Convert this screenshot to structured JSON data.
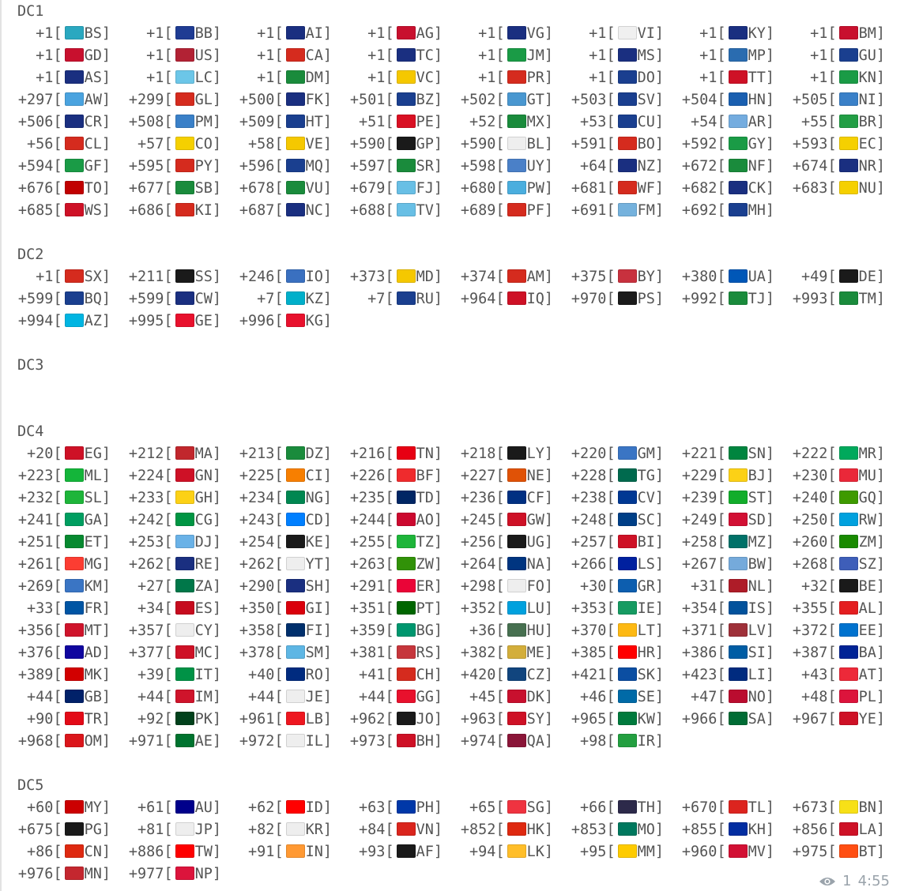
{
  "sections": [
    {
      "label": "DC1",
      "blank_after": 1,
      "rows": [
        [
          [
            "+1",
            "BS"
          ],
          [
            "+1",
            "BB"
          ],
          [
            "+1",
            "AI"
          ],
          [
            "+1",
            "AG"
          ],
          [
            "+1",
            "VG"
          ],
          [
            "+1",
            "VI"
          ],
          [
            "+1",
            "KY"
          ],
          [
            "+1",
            "BM"
          ]
        ],
        [
          [
            "+1",
            "GD"
          ],
          [
            "+1",
            "US"
          ],
          [
            "+1",
            "CA"
          ],
          [
            "+1",
            "TC"
          ],
          [
            "+1",
            "JM"
          ],
          [
            "+1",
            "MS"
          ],
          [
            "+1",
            "MP"
          ],
          [
            "+1",
            "GU"
          ]
        ],
        [
          [
            "+1",
            "AS"
          ],
          [
            "+1",
            "LC"
          ],
          [
            "+1",
            "DM"
          ],
          [
            "+1",
            "VC"
          ],
          [
            "+1",
            "PR"
          ],
          [
            "+1",
            "DO"
          ],
          [
            "+1",
            "TT"
          ],
          [
            "+1",
            "KN"
          ]
        ],
        [
          [
            "+297",
            "AW"
          ],
          [
            "+299",
            "GL"
          ],
          [
            "+500",
            "FK"
          ],
          [
            "+501",
            "BZ"
          ],
          [
            "+502",
            "GT"
          ],
          [
            "+503",
            "SV"
          ],
          [
            "+504",
            "HN"
          ],
          [
            "+505",
            "NI"
          ]
        ],
        [
          [
            "+506",
            "CR"
          ],
          [
            "+508",
            "PM"
          ],
          [
            "+509",
            "HT"
          ],
          [
            "+51",
            "PE"
          ],
          [
            "+52",
            "MX"
          ],
          [
            "+53",
            "CU"
          ],
          [
            "+54",
            "AR"
          ],
          [
            "+55",
            "BR"
          ]
        ],
        [
          [
            "+56",
            "CL"
          ],
          [
            "+57",
            "CO"
          ],
          [
            "+58",
            "VE"
          ],
          [
            "+590",
            "GP"
          ],
          [
            "+590",
            "BL"
          ],
          [
            "+591",
            "BO"
          ],
          [
            "+592",
            "GY"
          ],
          [
            "+593",
            "EC"
          ]
        ],
        [
          [
            "+594",
            "GF"
          ],
          [
            "+595",
            "PY"
          ],
          [
            "+596",
            "MQ"
          ],
          [
            "+597",
            "SR"
          ],
          [
            "+598",
            "UY"
          ],
          [
            "+64",
            "NZ"
          ],
          [
            "+672",
            "NF"
          ],
          [
            "+674",
            "NR"
          ]
        ],
        [
          [
            "+676",
            "TO"
          ],
          [
            "+677",
            "SB"
          ],
          [
            "+678",
            "VU"
          ],
          [
            "+679",
            "FJ"
          ],
          [
            "+680",
            "PW"
          ],
          [
            "+681",
            "WF"
          ],
          [
            "+682",
            "CK"
          ],
          [
            "+683",
            "NU"
          ]
        ],
        [
          [
            "+685",
            "WS"
          ],
          [
            "+686",
            "KI"
          ],
          [
            "+687",
            "NC"
          ],
          [
            "+688",
            "TV"
          ],
          [
            "+689",
            "PF"
          ],
          [
            "+691",
            "FM"
          ],
          [
            "+692",
            "MH"
          ]
        ]
      ]
    },
    {
      "label": "DC2",
      "blank_after": 1,
      "rows": [
        [
          [
            "+1",
            "SX"
          ],
          [
            "+211",
            "SS"
          ],
          [
            "+246",
            "IO"
          ],
          [
            "+373",
            "MD"
          ],
          [
            "+374",
            "AM"
          ],
          [
            "+375",
            "BY"
          ],
          [
            "+380",
            "UA"
          ],
          [
            "+49",
            "DE"
          ]
        ],
        [
          [
            "+599",
            "BQ"
          ],
          [
            "+599",
            "CW"
          ],
          [
            "+7",
            "KZ"
          ],
          [
            "+7",
            "RU"
          ],
          [
            "+964",
            "IQ"
          ],
          [
            "+970",
            "PS"
          ],
          [
            "+992",
            "TJ"
          ],
          [
            "+993",
            "TM"
          ]
        ],
        [
          [
            "+994",
            "AZ"
          ],
          [
            "+995",
            "GE"
          ],
          [
            "+996",
            "KG"
          ]
        ]
      ]
    },
    {
      "label": "DC3",
      "blank_after": 2,
      "rows": []
    },
    {
      "label": "DC4",
      "blank_after": 1,
      "rows": [
        [
          [
            "+20",
            "EG"
          ],
          [
            "+212",
            "MA"
          ],
          [
            "+213",
            "DZ"
          ],
          [
            "+216",
            "TN"
          ],
          [
            "+218",
            "LY"
          ],
          [
            "+220",
            "GM"
          ],
          [
            "+221",
            "SN"
          ],
          [
            "+222",
            "MR"
          ]
        ],
        [
          [
            "+223",
            "ML"
          ],
          [
            "+224",
            "GN"
          ],
          [
            "+225",
            "CI"
          ],
          [
            "+226",
            "BF"
          ],
          [
            "+227",
            "NE"
          ],
          [
            "+228",
            "TG"
          ],
          [
            "+229",
            "BJ"
          ],
          [
            "+230",
            "MU"
          ]
        ],
        [
          [
            "+232",
            "SL"
          ],
          [
            "+233",
            "GH"
          ],
          [
            "+234",
            "NG"
          ],
          [
            "+235",
            "TD"
          ],
          [
            "+236",
            "CF"
          ],
          [
            "+238",
            "CV"
          ],
          [
            "+239",
            "ST"
          ],
          [
            "+240",
            "GQ"
          ]
        ],
        [
          [
            "+241",
            "GA"
          ],
          [
            "+242",
            "CG"
          ],
          [
            "+243",
            "CD"
          ],
          [
            "+244",
            "AO"
          ],
          [
            "+245",
            "GW"
          ],
          [
            "+248",
            "SC"
          ],
          [
            "+249",
            "SD"
          ],
          [
            "+250",
            "RW"
          ]
        ],
        [
          [
            "+251",
            "ET"
          ],
          [
            "+253",
            "DJ"
          ],
          [
            "+254",
            "KE"
          ],
          [
            "+255",
            "TZ"
          ],
          [
            "+256",
            "UG"
          ],
          [
            "+257",
            "BI"
          ],
          [
            "+258",
            "MZ"
          ],
          [
            "+260",
            "ZM"
          ]
        ],
        [
          [
            "+261",
            "MG"
          ],
          [
            "+262",
            "RE"
          ],
          [
            "+262",
            "YT"
          ],
          [
            "+263",
            "ZW"
          ],
          [
            "+264",
            "NA"
          ],
          [
            "+266",
            "LS"
          ],
          [
            "+267",
            "BW"
          ],
          [
            "+268",
            "SZ"
          ]
        ],
        [
          [
            "+269",
            "KM"
          ],
          [
            "+27",
            "ZA"
          ],
          [
            "+290",
            "SH"
          ],
          [
            "+291",
            "ER"
          ],
          [
            "+298",
            "FO"
          ],
          [
            "+30",
            "GR"
          ],
          [
            "+31",
            "NL"
          ],
          [
            "+32",
            "BE"
          ]
        ],
        [
          [
            "+33",
            "FR"
          ],
          [
            "+34",
            "ES"
          ],
          [
            "+350",
            "GI"
          ],
          [
            "+351",
            "PT"
          ],
          [
            "+352",
            "LU"
          ],
          [
            "+353",
            "IE"
          ],
          [
            "+354",
            "IS"
          ],
          [
            "+355",
            "AL"
          ]
        ],
        [
          [
            "+356",
            "MT"
          ],
          [
            "+357",
            "CY"
          ],
          [
            "+358",
            "FI"
          ],
          [
            "+359",
            "BG"
          ],
          [
            "+36",
            "HU"
          ],
          [
            "+370",
            "LT"
          ],
          [
            "+371",
            "LV"
          ],
          [
            "+372",
            "EE"
          ]
        ],
        [
          [
            "+376",
            "AD"
          ],
          [
            "+377",
            "MC"
          ],
          [
            "+378",
            "SM"
          ],
          [
            "+381",
            "RS"
          ],
          [
            "+382",
            "ME"
          ],
          [
            "+385",
            "HR"
          ],
          [
            "+386",
            "SI"
          ],
          [
            "+387",
            "BA"
          ]
        ],
        [
          [
            "+389",
            "MK"
          ],
          [
            "+39",
            "IT"
          ],
          [
            "+40",
            "RO"
          ],
          [
            "+41",
            "CH"
          ],
          [
            "+420",
            "CZ"
          ],
          [
            "+421",
            "SK"
          ],
          [
            "+423",
            "LI"
          ],
          [
            "+43",
            "AT"
          ]
        ],
        [
          [
            "+44",
            "GB"
          ],
          [
            "+44",
            "IM"
          ],
          [
            "+44",
            "JE"
          ],
          [
            "+44",
            "GG"
          ],
          [
            "+45",
            "DK"
          ],
          [
            "+46",
            "SE"
          ],
          [
            "+47",
            "NO"
          ],
          [
            "+48",
            "PL"
          ]
        ],
        [
          [
            "+90",
            "TR"
          ],
          [
            "+92",
            "PK"
          ],
          [
            "+961",
            "LB"
          ],
          [
            "+962",
            "JO"
          ],
          [
            "+963",
            "SY"
          ],
          [
            "+965",
            "KW"
          ],
          [
            "+966",
            "SA"
          ],
          [
            "+967",
            "YE"
          ]
        ],
        [
          [
            "+968",
            "OM"
          ],
          [
            "+971",
            "AE"
          ],
          [
            "+972",
            "IL"
          ],
          [
            "+973",
            "BH"
          ],
          [
            "+974",
            "QA"
          ],
          [
            "+98",
            "IR"
          ]
        ]
      ]
    },
    {
      "label": "DC5",
      "blank_after": 0,
      "rows": [
        [
          [
            "+60",
            "MY"
          ],
          [
            "+61",
            "AU"
          ],
          [
            "+62",
            "ID"
          ],
          [
            "+63",
            "PH"
          ],
          [
            "+65",
            "SG"
          ],
          [
            "+66",
            "TH"
          ],
          [
            "+670",
            "TL"
          ],
          [
            "+673",
            "BN"
          ]
        ],
        [
          [
            "+675",
            "PG"
          ],
          [
            "+81",
            "JP"
          ],
          [
            "+82",
            "KR"
          ],
          [
            "+84",
            "VN"
          ],
          [
            "+852",
            "HK"
          ],
          [
            "+853",
            "MO"
          ],
          [
            "+855",
            "KH"
          ],
          [
            "+856",
            "LA"
          ]
        ],
        [
          [
            "+86",
            "CN"
          ],
          [
            "+886",
            "TW"
          ],
          [
            "+91",
            "IN"
          ],
          [
            "+93",
            "AF"
          ],
          [
            "+94",
            "LK"
          ],
          [
            "+95",
            "MM"
          ],
          [
            "+960",
            "MV"
          ],
          [
            "+975",
            "BT"
          ]
        ],
        [
          [
            "+976",
            "MN"
          ],
          [
            "+977",
            "NP"
          ]
        ]
      ]
    }
  ],
  "flag_colors": {
    "BS": "#2aa8c0",
    "BB": "#1f3c93",
    "AI": "#1a2f80",
    "AG": "#c8102e",
    "VG": "#1a2f80",
    "VI": "#f0f0f0",
    "KY": "#1a2f80",
    "BM": "#c8102e",
    "GD": "#c8102e",
    "US": "#b22234",
    "CA": "#d52b1e",
    "TC": "#1a2f80",
    "JM": "#1a9b46",
    "MS": "#1a2f80",
    "MP": "#2a6cb0",
    "GU": "#1a3f8f",
    "AS": "#1a2f80",
    "LC": "#6cc6e8",
    "DM": "#1a8b3c",
    "VC": "#f5c800",
    "PR": "#d52b1e",
    "DO": "#1a3f8f",
    "TT": "#ce1126",
    "KN": "#1a9b46",
    "AW": "#4aa3df",
    "GL": "#d52b1e",
    "FK": "#1a2f80",
    "BZ": "#1a3f8f",
    "GT": "#4997d0",
    "SV": "#1a3f8f",
    "HN": "#1a5fb0",
    "NI": "#3a80c8",
    "CR": "#1a2f80",
    "PM": "#3a80c8",
    "HT": "#1a3f8f",
    "PE": "#d91023",
    "MX": "#1a8b3c",
    "CU": "#1a3f8f",
    "AR": "#74acdf",
    "BR": "#229e45",
    "CL": "#d52b1e",
    "CO": "#f5d000",
    "VE": "#f5c800",
    "GP": "#1a1a1a",
    "BL": "#eeeeee",
    "BO": "#d52b1e",
    "GY": "#1a9b46",
    "EC": "#f5d000",
    "GF": "#1a9b46",
    "PY": "#d52b1e",
    "MQ": "#1a3f8f",
    "SR": "#1a8b3c",
    "UY": "#4a80c8",
    "NZ": "#1a2f80",
    "NF": "#1a8b3c",
    "NR": "#1a2f80",
    "TO": "#c10000",
    "SB": "#1a8b3c",
    "VU": "#1a8b3c",
    "FJ": "#68bfe5",
    "PW": "#4aaede",
    "WF": "#d52b1e",
    "CK": "#1a2f80",
    "NU": "#f5d000",
    "WS": "#ce1126",
    "KI": "#d52b1e",
    "NC": "#1a2f80",
    "TV": "#68bfe5",
    "PF": "#d52b1e",
    "FM": "#75b2dd",
    "MH": "#1a3f8f",
    "SX": "#d52b1e",
    "SS": "#1a1a1a",
    "IO": "#3a70c0",
    "MD": "#f5c800",
    "AM": "#d52b1e",
    "BY": "#c8313e",
    "UA": "#0057b7",
    "DE": "#1a1a1a",
    "BQ": "#1a3f8f",
    "CW": "#1a2f80",
    "KZ": "#00afca",
    "RU": "#1a3f8f",
    "IQ": "#ce1126",
    "PS": "#1a1a1a",
    "TJ": "#1a8b3c",
    "TM": "#1a8b3c",
    "AZ": "#00b5e2",
    "GE": "#e8112d",
    "KG": "#e8112d",
    "EG": "#ce1126",
    "MA": "#c1272d",
    "DZ": "#1a8b3c",
    "TN": "#e70013",
    "LY": "#1a1a1a",
    "GM": "#3a75c4",
    "SN": "#00853f",
    "MR": "#00a95c",
    "ML": "#14b53a",
    "GN": "#ce1126",
    "CI": "#f77f00",
    "BF": "#ef2b2d",
    "NE": "#e05206",
    "TG": "#006a4e",
    "BJ": "#fcd116",
    "MU": "#ea2839",
    "SL": "#1eb53a",
    "GH": "#fcd116",
    "NG": "#008751",
    "TD": "#002664",
    "CF": "#003082",
    "CV": "#003893",
    "ST": "#12ad2b",
    "GQ": "#3e9a00",
    "GA": "#009e60",
    "CG": "#009543",
    "CD": "#007fff",
    "AO": "#cc092f",
    "GW": "#ce1126",
    "SC": "#003f87",
    "SD": "#d21034",
    "RW": "#00a1de",
    "ET": "#078930",
    "DJ": "#6ab2e7",
    "KE": "#1a1a1a",
    "TZ": "#1eb53a",
    "UG": "#1a1a1a",
    "BI": "#ce1126",
    "MZ": "#007168",
    "ZM": "#198a00",
    "MG": "#fc3d32",
    "RE": "#1a2f80",
    "YT": "#eeeeee",
    "ZW": "#319208",
    "NA": "#003580",
    "LS": "#00209f",
    "BW": "#75aadb",
    "SZ": "#3e5eb9",
    "KM": "#3a75c4",
    "ZA": "#007749",
    "SH": "#1a2f80",
    "ER": "#ea0437",
    "FO": "#eeeeee",
    "GR": "#0d5eaf",
    "NL": "#ae1c28",
    "BE": "#1a1a1a",
    "FR": "#0055a4",
    "ES": "#c60b1e",
    "GI": "#da000c",
    "PT": "#006600",
    "LU": "#00a1de",
    "IE": "#169b62",
    "IS": "#02529c",
    "AL": "#e41e20",
    "MT": "#cf142b",
    "CY": "#eeeeee",
    "FI": "#002f6c",
    "BG": "#00966e",
    "HU": "#477050",
    "LT": "#fdb913",
    "LV": "#9e3039",
    "EE": "#0072ce",
    "AD": "#10069f",
    "MC": "#ce1126",
    "SM": "#5eb6e4",
    "RS": "#c6363c",
    "ME": "#d3ae3b",
    "HR": "#ff0000",
    "SI": "#005da4",
    "BA": "#002395",
    "MK": "#d20000",
    "IT": "#009246",
    "RO": "#002b7f",
    "CH": "#d52b1e",
    "CZ": "#11457e",
    "SK": "#0b4ea2",
    "LI": "#002b7f",
    "AT": "#ed2939",
    "GB": "#012169",
    "IM": "#cf142b",
    "JE": "#eeeeee",
    "GG": "#e8112d",
    "DK": "#c8102e",
    "SE": "#006aa7",
    "NO": "#ba0c2f",
    "PL": "#dc143c",
    "TR": "#e30a17",
    "PK": "#01411c",
    "LB": "#ee161f",
    "JO": "#1a1a1a",
    "SY": "#ce1126",
    "KW": "#007a3d",
    "SA": "#006c35",
    "YE": "#ce1126",
    "OM": "#db161b",
    "AE": "#00732f",
    "IL": "#eeeeee",
    "BH": "#ce1126",
    "QA": "#8a1538",
    "IR": "#239f40",
    "MY": "#cc0001",
    "AU": "#00008b",
    "ID": "#ff0000",
    "PH": "#0038a8",
    "SG": "#ef3340",
    "TH": "#2d2a4a",
    "TL": "#dc241f",
    "BN": "#f7e017",
    "PG": "#1a1a1a",
    "JP": "#eeeeee",
    "KR": "#eeeeee",
    "VN": "#da251d",
    "HK": "#de2910",
    "MO": "#00785e",
    "KH": "#032ea1",
    "LA": "#ce1126",
    "CN": "#de2910",
    "TW": "#fe0000",
    "IN": "#ff9933",
    "AF": "#1a1a1a",
    "LK": "#ffbe29",
    "MM": "#fecb00",
    "MV": "#d21034",
    "BT": "#ff4e12",
    "MN": "#c4272f",
    "NP": "#dc143c"
  },
  "footer": {
    "views": "1",
    "time": "4:55",
    "views_icon": "eye-icon"
  },
  "colors": {
    "text": "#555555",
    "meta": "#9aa3ab"
  }
}
